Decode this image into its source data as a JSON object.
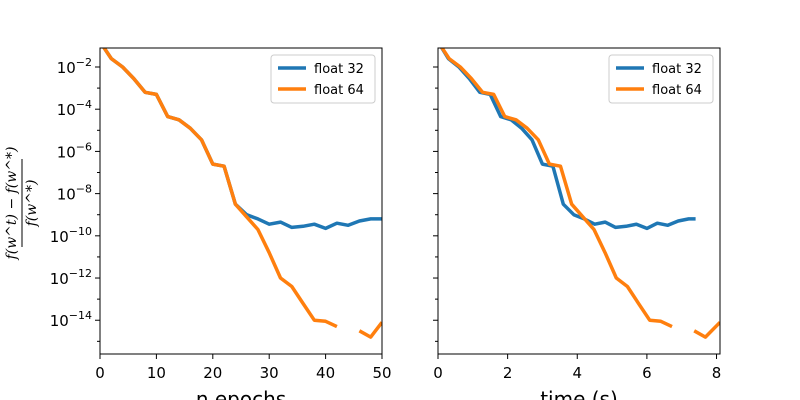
{
  "colors": {
    "float32": "#1f77b4",
    "float64": "#ff7f0e"
  },
  "ylabel": {
    "numerator": "f(w^t) − f(w^*)",
    "denominator": "f(w^*)"
  },
  "chart_data": [
    {
      "type": "line",
      "xlabel": "n epochs",
      "xlim": [
        0,
        50
      ],
      "xticks": [
        "0",
        "10",
        "20",
        "30",
        "40",
        "50"
      ],
      "yscale": "log",
      "ylim_log10": [
        -15.6,
        -1.1
      ],
      "yticks_exponents": [
        "-2",
        "-4",
        "-6",
        "-8",
        "-10",
        "-12",
        "-14"
      ],
      "legend": "top-right",
      "series": [
        {
          "name": "float 32",
          "x": [
            0,
            2,
            4,
            6,
            8,
            10,
            12,
            14,
            16,
            18,
            20,
            22,
            24,
            26,
            28,
            30,
            32,
            34,
            36,
            38,
            40,
            42,
            44,
            46,
            48,
            50
          ],
          "log10_y": [
            -0.8,
            -1.6,
            -2.0,
            -2.55,
            -3.2,
            -3.3,
            -4.35,
            -4.5,
            -4.9,
            -5.45,
            -6.6,
            -6.7,
            -8.5,
            -9.0,
            -9.2,
            -9.45,
            -9.35,
            -9.6,
            -9.55,
            -9.45,
            -9.65,
            -9.4,
            -9.5,
            -9.3,
            -9.2,
            -9.2
          ]
        },
        {
          "name": "float 64",
          "x": [
            0,
            2,
            4,
            6,
            8,
            10,
            12,
            14,
            16,
            18,
            20,
            22,
            24,
            26,
            28,
            30,
            32,
            34,
            36,
            38,
            40,
            42,
            44,
            46,
            48,
            50
          ],
          "log10_y": [
            -0.8,
            -1.6,
            -2.0,
            -2.55,
            -3.2,
            -3.3,
            -4.35,
            -4.5,
            -4.9,
            -5.45,
            -6.6,
            -6.7,
            -8.5,
            -9.1,
            -9.7,
            -10.8,
            -12.0,
            -12.4,
            -13.2,
            -14.0,
            -14.05,
            -14.3,
            null,
            -14.5,
            -14.8,
            -14.1
          ]
        }
      ]
    },
    {
      "type": "line",
      "xlabel": "time (s)",
      "xlim": [
        0,
        8.1
      ],
      "xticks": [
        "0",
        "2",
        "4",
        "6",
        "8"
      ],
      "yscale": "log",
      "ylim_log10": [
        -15.6,
        -1.1
      ],
      "legend": "top-right",
      "series": [
        {
          "name": "float 32",
          "x": [
            0,
            0.3,
            0.6,
            0.9,
            1.2,
            1.5,
            1.8,
            2.1,
            2.4,
            2.7,
            3.0,
            3.3,
            3.6,
            3.9,
            4.2,
            4.5,
            4.8,
            5.1,
            5.4,
            5.7,
            6.0,
            6.3,
            6.6,
            6.9,
            7.2,
            7.4
          ],
          "log10_y": [
            -0.8,
            -1.6,
            -2.0,
            -2.55,
            -3.2,
            -3.3,
            -4.35,
            -4.5,
            -4.9,
            -5.45,
            -6.6,
            -6.7,
            -8.5,
            -9.0,
            -9.2,
            -9.45,
            -9.35,
            -9.6,
            -9.55,
            -9.45,
            -9.65,
            -9.4,
            -9.5,
            -9.3,
            -9.2,
            -9.2
          ]
        },
        {
          "name": "float 64",
          "x": [
            0,
            0.32,
            0.64,
            0.96,
            1.28,
            1.6,
            1.92,
            2.24,
            2.56,
            2.88,
            3.2,
            3.52,
            3.84,
            4.16,
            4.48,
            4.8,
            5.12,
            5.44,
            5.76,
            6.08,
            6.4,
            6.72,
            7.04,
            7.36,
            7.68,
            8.1
          ],
          "log10_y": [
            -0.8,
            -1.6,
            -2.0,
            -2.55,
            -3.2,
            -3.3,
            -4.35,
            -4.5,
            -4.9,
            -5.45,
            -6.6,
            -6.7,
            -8.5,
            -9.1,
            -9.7,
            -10.8,
            -12.0,
            -12.4,
            -13.2,
            -14.0,
            -14.05,
            -14.3,
            null,
            -14.5,
            -14.8,
            -14.1
          ]
        }
      ]
    }
  ]
}
